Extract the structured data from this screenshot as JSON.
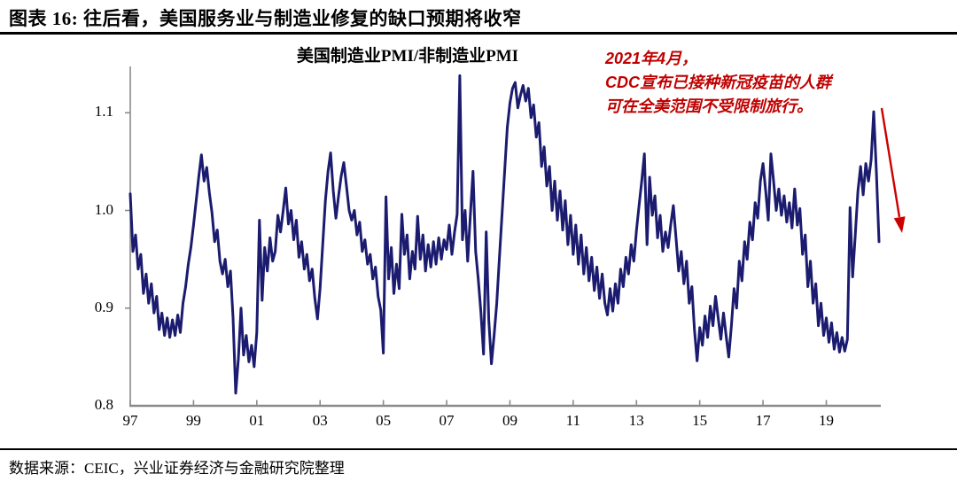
{
  "header": {
    "title": "图表 16: 往后看，美国服务业与制造业修复的缺口预期将收窄"
  },
  "chart": {
    "title": "美国制造业PMI/非制造业PMI"
  },
  "annotation": {
    "line1": "2021年4月，",
    "line2": "CDC宣布已接种新冠疫苗的人群",
    "line3": "可在全美范围不受限制旅行。"
  },
  "footer": {
    "source": "数据来源：CEIC，兴业证券经济与金融研究院整理"
  },
  "colors": {
    "line": "#1b1b6f",
    "annotation": "#c00000",
    "arrow": "#cc0000",
    "axis": "#8a8a8a",
    "text": "#000000"
  },
  "chart_data": {
    "type": "line",
    "title": "美国制造业PMI/非制造业PMI",
    "series_name": "US Manufacturing PMI / Non-Manufacturing PMI ratio",
    "x_start_year": 1997,
    "frequency": "monthly",
    "x_tick_labels": [
      "97",
      "99",
      "01",
      "03",
      "05",
      "07",
      "09",
      "11",
      "13",
      "15",
      "17",
      "19"
    ],
    "x_tick_step_years": 2,
    "y_ticks": [
      "0.8",
      "0.9",
      "1.0",
      "1.1"
    ],
    "y_tick_values": [
      0.8,
      0.9,
      1.0,
      1.1
    ],
    "ylim": [
      0.8,
      1.147
    ],
    "grid": false,
    "legend": "none",
    "values": [
      1.017,
      0.958,
      0.975,
      0.94,
      0.955,
      0.915,
      0.935,
      0.905,
      0.925,
      0.895,
      0.912,
      0.878,
      0.895,
      0.872,
      0.89,
      0.87,
      0.888,
      0.872,
      0.893,
      0.875,
      0.905,
      0.922,
      0.945,
      0.962,
      0.985,
      1.01,
      1.035,
      1.057,
      1.03,
      1.044,
      1.018,
      0.998,
      0.968,
      0.98,
      0.948,
      0.935,
      0.95,
      0.922,
      0.938,
      0.89,
      0.813,
      0.848,
      0.9,
      0.852,
      0.872,
      0.845,
      0.862,
      0.84,
      0.875,
      0.99,
      0.908,
      0.962,
      0.938,
      0.972,
      0.948,
      0.958,
      0.995,
      0.978,
      1.0,
      1.023,
      0.986,
      1.0,
      0.97,
      0.99,
      0.952,
      0.968,
      0.94,
      0.955,
      0.928,
      0.94,
      0.91,
      0.889,
      0.92,
      0.965,
      1.01,
      1.04,
      1.059,
      1.02,
      0.992,
      1.015,
      1.035,
      1.049,
      1.025,
      1.0,
      0.99,
      1.0,
      0.975,
      0.988,
      0.958,
      0.97,
      0.945,
      0.955,
      0.93,
      0.942,
      0.912,
      0.898,
      0.854,
      1.014,
      0.93,
      0.962,
      0.915,
      0.945,
      0.92,
      0.996,
      0.955,
      0.975,
      0.93,
      0.958,
      0.94,
      0.994,
      0.95,
      0.975,
      0.938,
      0.965,
      0.942,
      0.968,
      0.945,
      0.972,
      0.95,
      0.97,
      0.96,
      0.985,
      0.955,
      0.978,
      0.996,
      1.138,
      0.97,
      1.0,
      0.948,
      0.995,
      1.04,
      0.958,
      0.93,
      0.896,
      0.853,
      0.978,
      0.888,
      0.843,
      0.872,
      0.905,
      0.95,
      0.995,
      1.04,
      1.085,
      1.11,
      1.125,
      1.131,
      1.105,
      1.118,
      1.128,
      1.112,
      1.125,
      1.095,
      1.108,
      1.075,
      1.09,
      1.045,
      1.065,
      1.025,
      1.045,
      1.0,
      1.03,
      0.99,
      1.02,
      0.98,
      1.01,
      0.965,
      0.995,
      0.955,
      0.985,
      0.945,
      0.975,
      0.935,
      0.962,
      0.928,
      0.952,
      0.918,
      0.942,
      0.91,
      0.935,
      0.905,
      0.893,
      0.92,
      0.897,
      0.925,
      0.905,
      0.94,
      0.922,
      0.952,
      0.935,
      0.965,
      0.948,
      0.98,
      1.005,
      1.03,
      1.058,
      0.965,
      1.034,
      0.995,
      1.015,
      0.972,
      0.995,
      0.958,
      0.978,
      0.962,
      0.985,
      1.005,
      0.972,
      0.938,
      0.958,
      0.925,
      0.948,
      0.905,
      0.922,
      0.878,
      0.846,
      0.88,
      0.862,
      0.892,
      0.87,
      0.902,
      0.882,
      0.912,
      0.89,
      0.868,
      0.895,
      0.872,
      0.85,
      0.882,
      0.92,
      0.9,
      0.948,
      0.928,
      0.968,
      0.95,
      0.988,
      0.97,
      1.008,
      0.992,
      1.03,
      1.048,
      1.02,
      0.99,
      1.058,
      1.03,
      1.0,
      1.022,
      0.995,
      1.015,
      0.988,
      1.008,
      0.982,
      1.022,
      0.985,
      1.002,
      0.955,
      0.975,
      0.922,
      0.948,
      0.905,
      0.925,
      0.882,
      0.905,
      0.872,
      0.89,
      0.865,
      0.885,
      0.858,
      0.875,
      0.855,
      0.87,
      0.856,
      0.868,
      1.003,
      0.932,
      0.975,
      1.02,
      1.045,
      1.016,
      1.048,
      1.03,
      1.052,
      1.101,
      1.04,
      0.968
    ]
  }
}
